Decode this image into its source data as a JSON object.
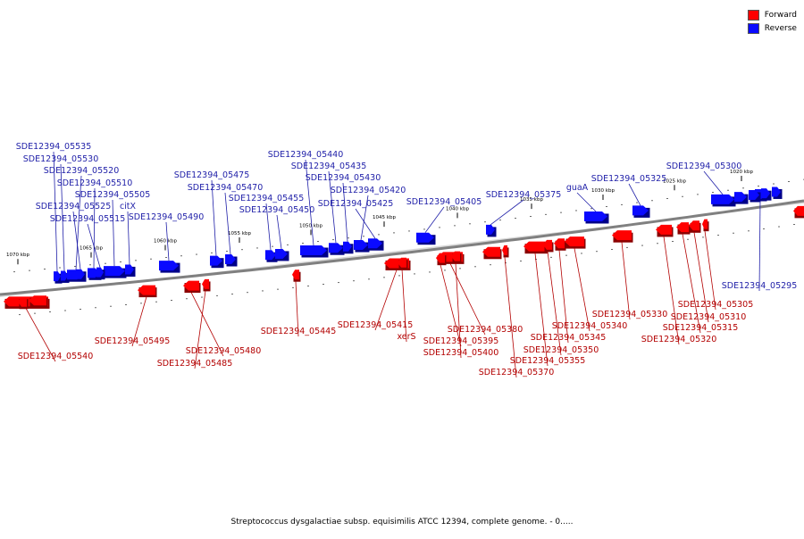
{
  "legend": {
    "forward": "Forward",
    "reverse": "Reverse"
  },
  "colors": {
    "forward": "#ff0000",
    "reverse": "#0a0aff",
    "forward_label": "#b30000",
    "reverse_label": "#1f1fa8",
    "backbone": "#808080"
  },
  "caption": "Streptococcus dysgalactiae subsp. equisimilis ATCC 12394, complete genome. - 0.....",
  "scale_ticks": [
    "1020 kbp",
    "1025 kbp",
    "1030 kbp",
    "1035 kbp",
    "1040 kbp",
    "1045 kbp",
    "1050 kbp",
    "1055 kbp",
    "1060 kbp",
    "1065 kbp",
    "1070 kbp"
  ],
  "genes_reverse": [
    "SDE12394_05535",
    "SDE12394_05530",
    "SDE12394_05520",
    "SDE12394_05510",
    "SDE12394_05505",
    "SDE12394_05525",
    "SDE12394_05515",
    "citX",
    "SDE12394_05490",
    "SDE12394_05475",
    "SDE12394_05470",
    "SDE12394_05455",
    "SDE12394_05450",
    "SDE12394_05440",
    "SDE12394_05435",
    "SDE12394_05430",
    "SDE12394_05420",
    "SDE12394_05425",
    "SDE12394_05405",
    "SDE12394_05375",
    "guaA",
    "SDE12394_05325",
    "SDE12394_05300",
    "SDE12394_05295"
  ],
  "genes_forward": [
    "SDE12394_05540",
    "SDE12394_05495",
    "SDE12394_05480",
    "SDE12394_05485",
    "SDE12394_05445",
    "SDE12394_05415",
    "xerS",
    "SDE12394_05380",
    "SDE12394_05395",
    "SDE12394_05400",
    "SDE12394_05370",
    "SDE12394_05355",
    "SDE12394_05350",
    "SDE12394_05345",
    "SDE12394_05340",
    "SDE12394_05330",
    "SDE12394_05320",
    "SDE12394_05315",
    "SDE12394_05310",
    "SDE12394_05305"
  ]
}
